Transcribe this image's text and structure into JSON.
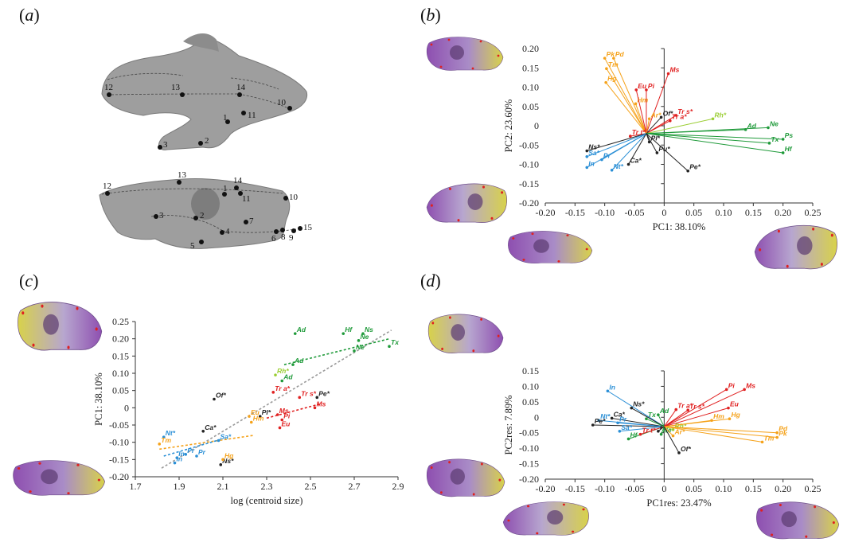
{
  "panels": {
    "a": {
      "open": "(",
      "letter": "a",
      "close": ")"
    },
    "b": {
      "open": "(",
      "letter": "b",
      "close": ")"
    },
    "c": {
      "open": "(",
      "letter": "c",
      "close": ")"
    },
    "d": {
      "open": "(",
      "letter": "d",
      "close": ")"
    }
  },
  "colors": {
    "red": "#e02020",
    "orange": "#f5a21a",
    "green": "#1f9a3a",
    "lightgreen": "#9acd32",
    "blue": "#2a8fd6",
    "black": "#222222",
    "gray": "#9a9a9a",
    "skull_gray": "#9e9e9e",
    "skull_yellow": "#d8d24a",
    "skull_purple": "#8e4fb0"
  },
  "landmarks": {
    "dorsal": [
      "12",
      "13",
      "14",
      "10",
      "1",
      "11",
      "3",
      "2"
    ],
    "lateral": [
      "12",
      "13",
      "14",
      "1",
      "11",
      "10",
      "3",
      "2",
      "7",
      "4",
      "5",
      "6",
      "8",
      "9",
      "15"
    ]
  },
  "chart_data": [
    {
      "panel": "b",
      "type": "scatter",
      "xlabel": "PC1: 38.10%",
      "ylabel": "PC2: 23.60%",
      "xlim": [
        -0.2,
        0.25
      ],
      "ylim": [
        -0.2,
        0.2
      ],
      "xticks": [
        "-0.20",
        "-0.15",
        "-0.10",
        "-0.05",
        "0",
        "0.05",
        "0.10",
        "0.15",
        "0.20",
        "0.25"
      ],
      "yticks": [
        "0.20",
        "0.15",
        "0.10",
        "0.05",
        "0",
        "-0.05",
        "-0.10",
        "-0.15",
        "-0.20"
      ],
      "grid": false,
      "points": [
        {
          "label": "Pk",
          "x": -0.1,
          "y": 0.175,
          "group": "orange"
        },
        {
          "label": "Pd",
          "x": -0.085,
          "y": 0.175,
          "group": "orange"
        },
        {
          "label": "Tm",
          "x": -0.097,
          "y": 0.148,
          "group": "orange"
        },
        {
          "label": "Hg",
          "x": -0.098,
          "y": 0.112,
          "group": "orange"
        },
        {
          "label": "Hm",
          "x": -0.048,
          "y": 0.057,
          "group": "orange"
        },
        {
          "label": "Eu",
          "x": -0.047,
          "y": 0.093,
          "group": "red"
        },
        {
          "label": "Pi",
          "x": -0.03,
          "y": 0.093,
          "group": "red"
        },
        {
          "label": "Ms",
          "x": 0.007,
          "y": 0.135,
          "group": "red"
        },
        {
          "label": "Tr s*",
          "x": 0.02,
          "y": 0.027,
          "group": "red"
        },
        {
          "label": "Tr a*",
          "x": 0.01,
          "y": 0.013,
          "group": "red"
        },
        {
          "label": "Tr t*",
          "x": -0.057,
          "y": -0.027,
          "group": "red"
        },
        {
          "label": "Of*",
          "x": -0.005,
          "y": 0.022,
          "group": "black"
        },
        {
          "label": "Ar*",
          "x": -0.025,
          "y": 0.018,
          "group": "orange"
        },
        {
          "label": "Rh*",
          "x": 0.082,
          "y": 0.018,
          "group": "lightgreen"
        },
        {
          "label": "Ad",
          "x": 0.137,
          "y": -0.01,
          "group": "green"
        },
        {
          "label": "Ne",
          "x": 0.175,
          "y": -0.005,
          "group": "green"
        },
        {
          "label": "Ps",
          "x": 0.2,
          "y": -0.035,
          "group": "green"
        },
        {
          "label": "Tx",
          "x": 0.177,
          "y": -0.045,
          "group": "green"
        },
        {
          "label": "Hf",
          "x": 0.2,
          "y": -0.07,
          "group": "green"
        },
        {
          "label": "Pl*",
          "x": -0.025,
          "y": -0.042,
          "group": "black"
        },
        {
          "label": "Pu*",
          "x": -0.012,
          "y": -0.07,
          "group": "black"
        },
        {
          "label": "Ns*",
          "x": -0.13,
          "y": -0.065,
          "group": "black"
        },
        {
          "label": "Sa*",
          "x": -0.13,
          "y": -0.08,
          "group": "blue"
        },
        {
          "label": "Pr",
          "x": -0.105,
          "y": -0.088,
          "group": "blue"
        },
        {
          "label": "In",
          "x": -0.13,
          "y": -0.108,
          "group": "blue"
        },
        {
          "label": "Nt*",
          "x": -0.088,
          "y": -0.115,
          "group": "blue"
        },
        {
          "label": "Ca*",
          "x": -0.06,
          "y": -0.1,
          "group": "black"
        },
        {
          "label": "Pe*",
          "x": 0.04,
          "y": -0.117,
          "group": "black"
        }
      ]
    },
    {
      "panel": "c",
      "type": "scatter",
      "xlabel": "log (centroid size)",
      "ylabel": "PC1: 38.10%",
      "xlim": [
        1.7,
        2.9
      ],
      "ylim": [
        -0.2,
        0.25
      ],
      "xticks": [
        "1.7",
        "1.9",
        "2.1",
        "2.3",
        "2.5",
        "2.7",
        "2.9"
      ],
      "yticks": [
        "0.25",
        "0.20",
        "0.15",
        "0.10",
        "0.05",
        "0",
        "-0.05",
        "-0.10",
        "-0.15",
        "-0.20"
      ],
      "grid": false,
      "points": [
        {
          "label": "Ad",
          "x": 2.43,
          "y": 0.215,
          "group": "green"
        },
        {
          "label": "Hf",
          "x": 2.65,
          "y": 0.215,
          "group": "green"
        },
        {
          "label": "Ns",
          "x": 2.74,
          "y": 0.215,
          "group": "green"
        },
        {
          "label": "Ne",
          "x": 2.72,
          "y": 0.195,
          "group": "green"
        },
        {
          "label": "Ne",
          "x": 2.7,
          "y": 0.165,
          "group": "green"
        },
        {
          "label": "Tx",
          "x": 2.86,
          "y": 0.178,
          "group": "green"
        },
        {
          "label": "Ad",
          "x": 2.42,
          "y": 0.125,
          "group": "green"
        },
        {
          "label": "Rh*",
          "x": 2.34,
          "y": 0.095,
          "group": "lightgreen"
        },
        {
          "label": "Ad",
          "x": 2.37,
          "y": 0.078,
          "group": "green"
        },
        {
          "label": "Of*",
          "x": 2.06,
          "y": 0.025,
          "group": "black"
        },
        {
          "label": "Tr a*",
          "x": 2.33,
          "y": 0.045,
          "group": "red"
        },
        {
          "label": "Tr s*",
          "x": 2.45,
          "y": 0.03,
          "group": "red"
        },
        {
          "label": "Pe*",
          "x": 2.53,
          "y": 0.03,
          "group": "black"
        },
        {
          "label": "Ms",
          "x": 2.52,
          "y": 0.0,
          "group": "red"
        },
        {
          "label": "Ms",
          "x": 2.35,
          "y": -0.02,
          "group": "red"
        },
        {
          "label": "Pi",
          "x": 2.37,
          "y": -0.035,
          "group": "red"
        },
        {
          "label": "Eu",
          "x": 2.36,
          "y": -0.058,
          "group": "red"
        },
        {
          "label": "Pl*",
          "x": 2.27,
          "y": -0.025,
          "group": "black"
        },
        {
          "label": "Eu",
          "x": 2.22,
          "y": -0.025,
          "group": "orange"
        },
        {
          "label": "Hm",
          "x": 2.23,
          "y": -0.042,
          "group": "orange"
        },
        {
          "label": "Ca*",
          "x": 2.01,
          "y": -0.068,
          "group": "black"
        },
        {
          "label": "Ns*",
          "x": 2.09,
          "y": -0.165,
          "group": "black"
        },
        {
          "label": "Nt*",
          "x": 1.83,
          "y": -0.085,
          "group": "blue"
        },
        {
          "label": "Tm",
          "x": 1.81,
          "y": -0.105,
          "group": "orange"
        },
        {
          "label": "Pr",
          "x": 1.93,
          "y": -0.135,
          "group": "blue"
        },
        {
          "label": "Pr",
          "x": 1.98,
          "y": -0.14,
          "group": "blue"
        },
        {
          "label": "In",
          "x": 1.89,
          "y": -0.145,
          "group": "blue"
        },
        {
          "label": "In",
          "x": 1.88,
          "y": -0.16,
          "group": "blue"
        },
        {
          "label": "Hg",
          "x": 2.1,
          "y": -0.15,
          "group": "orange"
        },
        {
          "label": "Sa*",
          "x": 2.08,
          "y": -0.095,
          "group": "blue"
        }
      ],
      "trendlines": [
        {
          "group": "gray",
          "x1": 1.82,
          "y1": -0.175,
          "x2": 2.87,
          "y2": 0.225
        },
        {
          "group": "green",
          "x1": 2.38,
          "y1": 0.125,
          "x2": 2.86,
          "y2": 0.2
        },
        {
          "group": "red",
          "x1": 2.3,
          "y1": -0.03,
          "x2": 2.55,
          "y2": 0.012
        },
        {
          "group": "orange",
          "x1": 1.81,
          "y1": -0.12,
          "x2": 2.24,
          "y2": -0.08
        },
        {
          "group": "blue",
          "x1": 1.83,
          "y1": -0.14,
          "x2": 2.1,
          "y2": -0.09
        }
      ]
    },
    {
      "panel": "d",
      "type": "scatter",
      "xlabel": "PC1res: 23.47%",
      "ylabel": "PC2res: 7.89%",
      "xlim": [
        -0.2,
        0.25
      ],
      "ylim": [
        -0.2,
        0.15
      ],
      "xticks": [
        "-0.20",
        "-0.15",
        "-0.10",
        "-0.05",
        "0",
        "0.05",
        "0.10",
        "0.15",
        "0.20",
        "0.25"
      ],
      "yticks": [
        "0.15",
        "0.10",
        "0.05",
        "0",
        "-0.05",
        "-0.10",
        "-0.15",
        "-0.20"
      ],
      "grid": false,
      "points": [
        {
          "label": "In",
          "x": -0.095,
          "y": 0.085,
          "group": "blue"
        },
        {
          "label": "Ns*",
          "x": -0.055,
          "y": 0.03,
          "group": "black"
        },
        {
          "label": "Nt*",
          "x": -0.11,
          "y": -0.01,
          "group": "blue"
        },
        {
          "label": "Ca*",
          "x": -0.088,
          "y": -0.003,
          "group": "black"
        },
        {
          "label": "Pe*",
          "x": -0.12,
          "y": -0.025,
          "group": "black"
        },
        {
          "label": "Pr",
          "x": -0.078,
          "y": -0.018,
          "group": "blue"
        },
        {
          "label": "Sa*",
          "x": -0.075,
          "y": -0.045,
          "group": "blue"
        },
        {
          "label": "Hf",
          "x": -0.06,
          "y": -0.07,
          "group": "green"
        },
        {
          "label": "Tr t*",
          "x": -0.04,
          "y": -0.055,
          "group": "red"
        },
        {
          "label": "Pl*",
          "x": -0.01,
          "y": -0.045,
          "group": "black"
        },
        {
          "label": "Tx",
          "x": -0.03,
          "y": -0.005,
          "group": "green"
        },
        {
          "label": "Ad",
          "x": -0.01,
          "y": 0.008,
          "group": "green"
        },
        {
          "label": "Ne",
          "x": -0.005,
          "y": -0.055,
          "group": "green"
        },
        {
          "label": "Rh*",
          "x": 0.015,
          "y": -0.04,
          "group": "lightgreen"
        },
        {
          "label": "Ar*",
          "x": 0.015,
          "y": -0.06,
          "group": "orange"
        },
        {
          "label": "Tr a*",
          "x": 0.02,
          "y": 0.025,
          "group": "red"
        },
        {
          "label": "Tr s*",
          "x": 0.04,
          "y": 0.023,
          "group": "red"
        },
        {
          "label": "Pi",
          "x": 0.105,
          "y": 0.09,
          "group": "red"
        },
        {
          "label": "Ms",
          "x": 0.135,
          "y": 0.09,
          "group": "red"
        },
        {
          "label": "Eu",
          "x": 0.108,
          "y": 0.03,
          "group": "red"
        },
        {
          "label": "Hm",
          "x": 0.08,
          "y": -0.01,
          "group": "orange"
        },
        {
          "label": "Hg",
          "x": 0.11,
          "y": -0.005,
          "group": "orange"
        },
        {
          "label": "Pd",
          "x": 0.19,
          "y": -0.05,
          "group": "orange"
        },
        {
          "label": "Pk",
          "x": 0.19,
          "y": -0.065,
          "group": "orange"
        },
        {
          "label": "Tm",
          "x": 0.165,
          "y": -0.08,
          "group": "orange"
        },
        {
          "label": "Of*",
          "x": 0.025,
          "y": -0.115,
          "group": "black"
        }
      ]
    }
  ]
}
